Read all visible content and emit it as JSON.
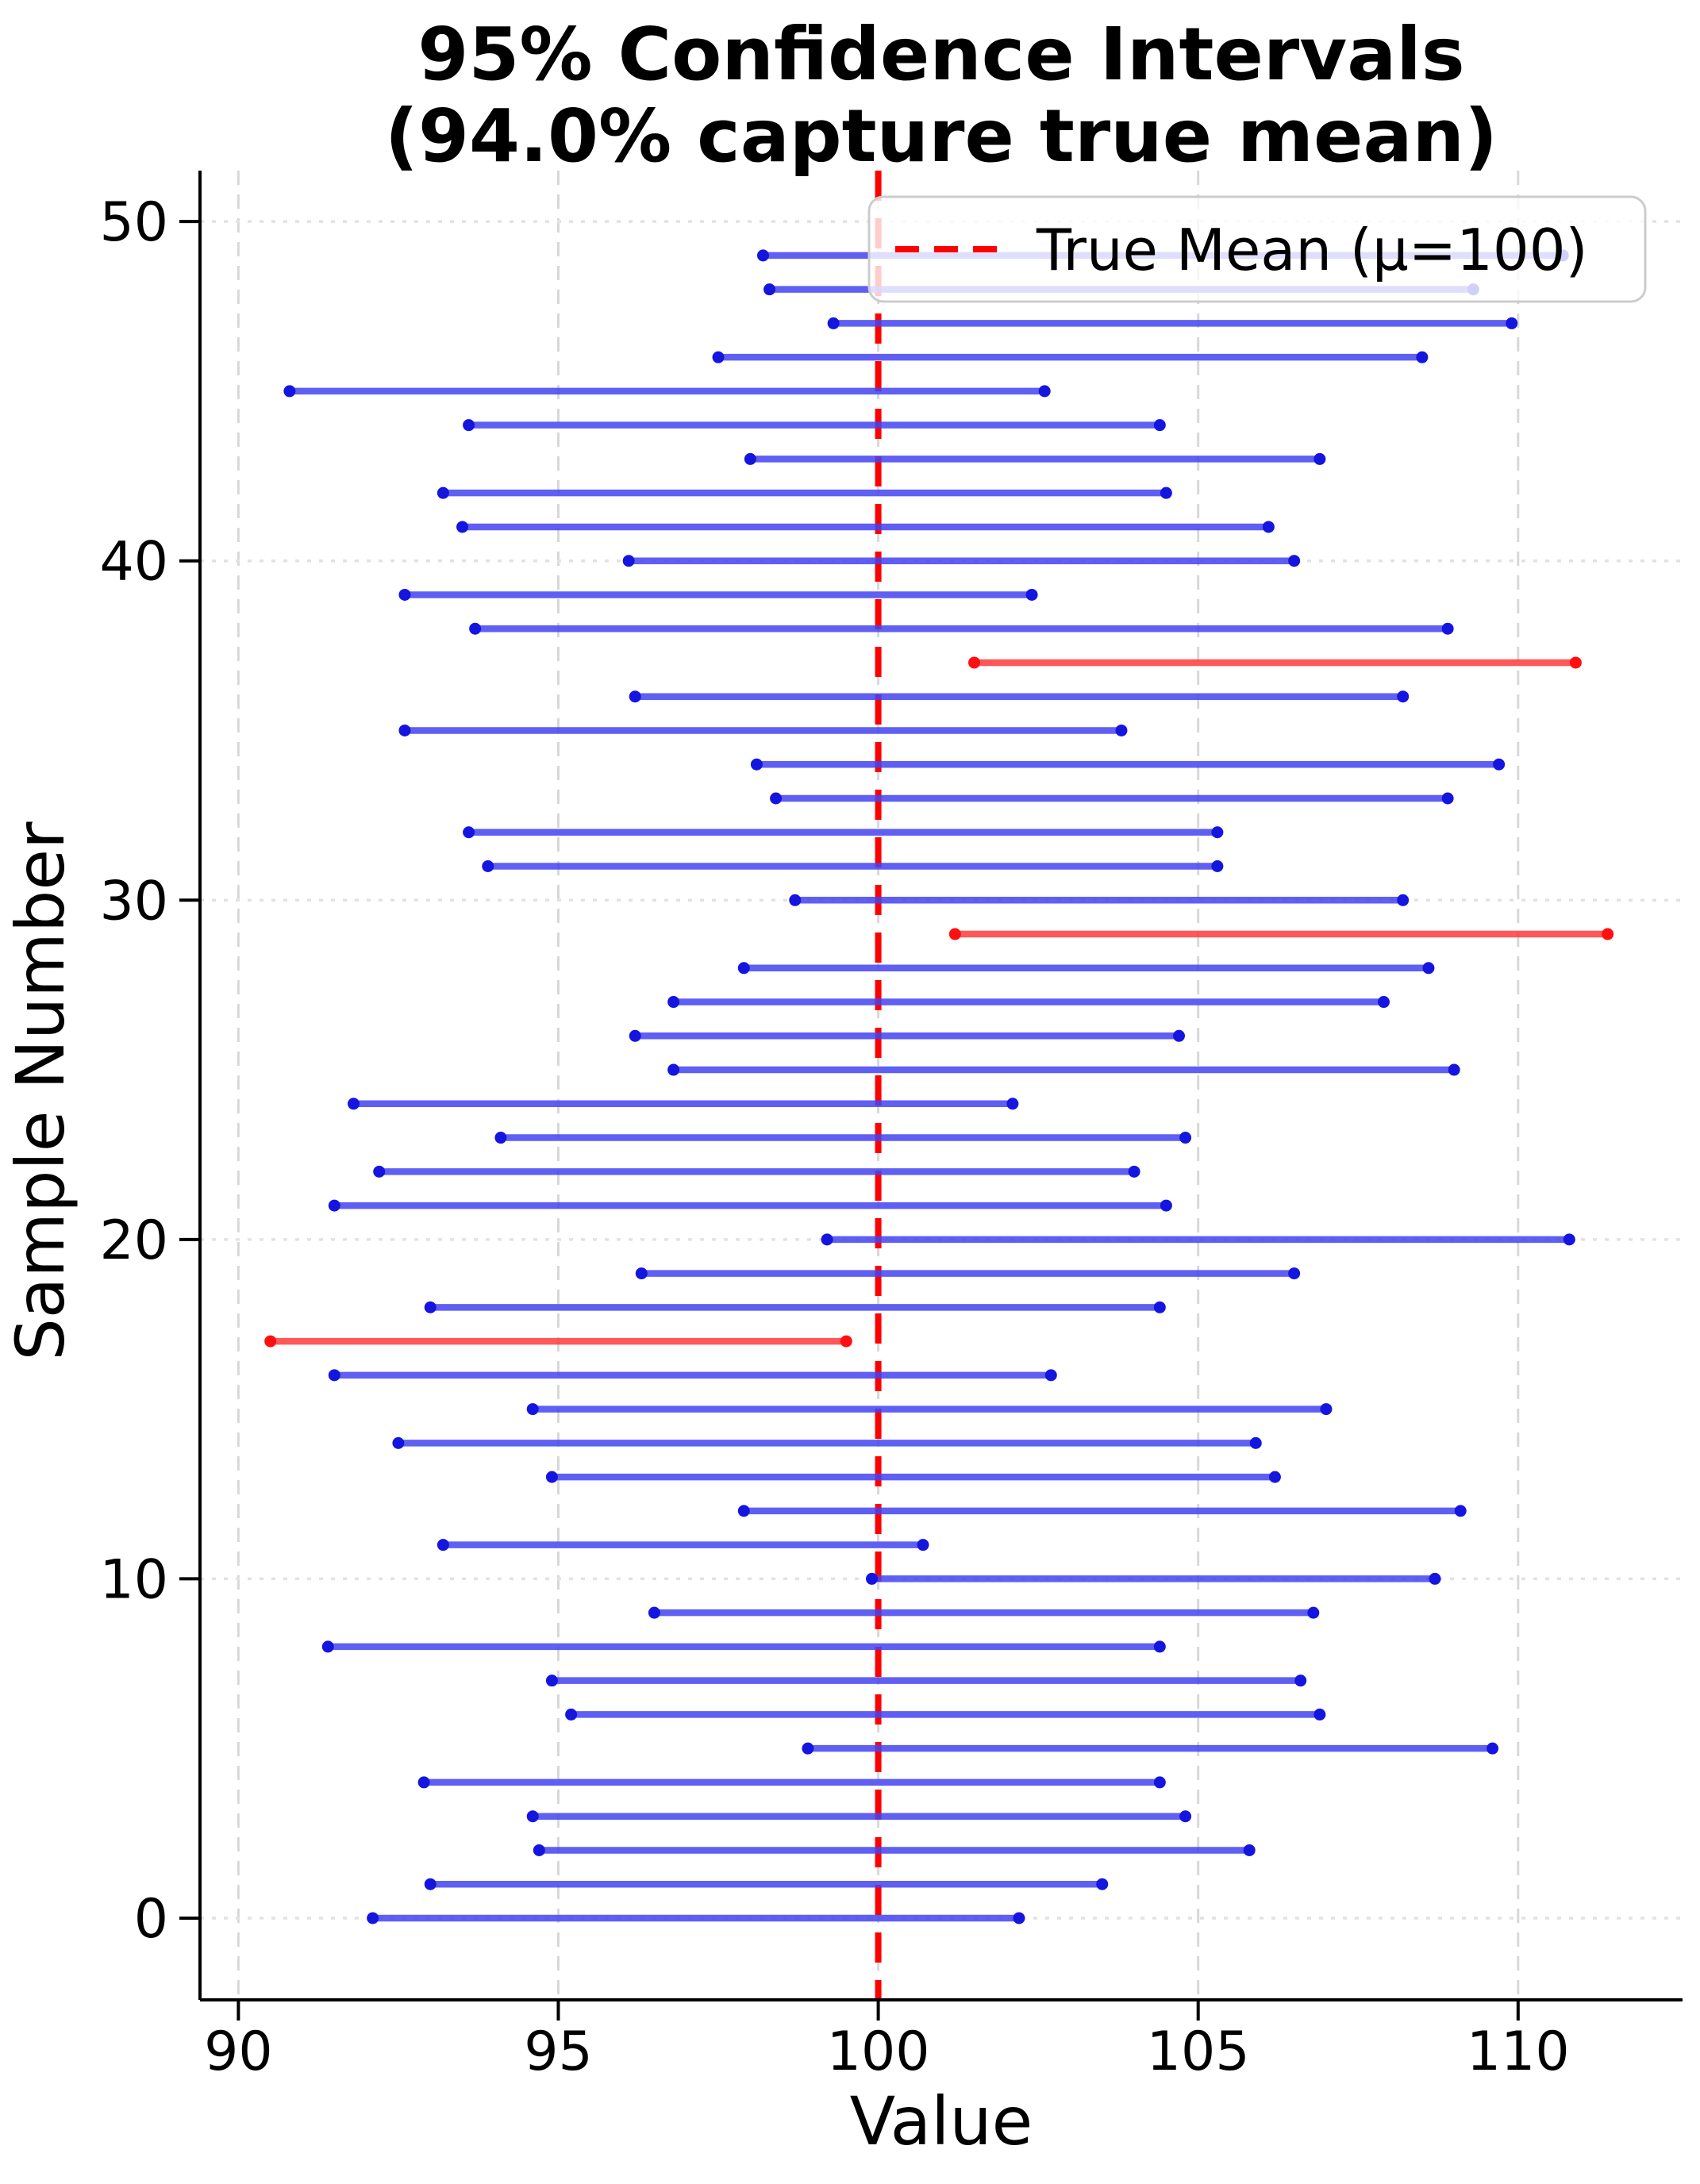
{
  "chart_data": {
    "type": "scatter",
    "subtype": "horizontal_confidence_intervals",
    "title_line1": "95% Confidence Intervals",
    "title_line2": "(94.0% capture true mean)",
    "xlabel": "Value",
    "ylabel": "Sample Number",
    "true_mean": 100,
    "capture_rate_pct": 94.0,
    "confidence_level_pct": 95,
    "n_samples": 50,
    "legend": {
      "label": "True Mean (μ=100)",
      "position": "upper right"
    },
    "xticks": [
      90,
      95,
      100,
      105,
      110
    ],
    "yticks": [
      0,
      10,
      20,
      30,
      40,
      50
    ],
    "xlim": [
      89.4,
      112.57
    ],
    "ylim": [
      -2.41,
      51.5
    ],
    "grid": true,
    "colors": {
      "capture_line": "#4444f2",
      "capture_marker": "#1515e0",
      "miss_line": "#ff3b3b",
      "miss_marker": "#ff0f0f",
      "mean_line": "#ff0000",
      "grid_x": "#d8d8d8",
      "grid_y": "#e2e2e2",
      "spine": "#000000",
      "legend_border": "#cccccc"
    },
    "intervals": [
      {
        "sample": 0,
        "low": 92.1,
        "high": 102.2,
        "captures_mean": true
      },
      {
        "sample": 1,
        "low": 93.0,
        "high": 103.5,
        "captures_mean": true
      },
      {
        "sample": 2,
        "low": 94.7,
        "high": 105.8,
        "captures_mean": true
      },
      {
        "sample": 3,
        "low": 94.6,
        "high": 104.8,
        "captures_mean": true
      },
      {
        "sample": 4,
        "low": 92.9,
        "high": 104.4,
        "captures_mean": true
      },
      {
        "sample": 5,
        "low": 98.9,
        "high": 109.6,
        "captures_mean": true
      },
      {
        "sample": 6,
        "low": 95.2,
        "high": 106.9,
        "captures_mean": true
      },
      {
        "sample": 7,
        "low": 94.9,
        "high": 106.6,
        "captures_mean": true
      },
      {
        "sample": 8,
        "low": 91.4,
        "high": 104.4,
        "captures_mean": true
      },
      {
        "sample": 9,
        "low": 96.5,
        "high": 106.8,
        "captures_mean": true
      },
      {
        "sample": 10,
        "low": 99.9,
        "high": 108.7,
        "captures_mean": true
      },
      {
        "sample": 11,
        "low": 93.2,
        "high": 100.7,
        "captures_mean": true
      },
      {
        "sample": 12,
        "low": 97.9,
        "high": 109.1,
        "captures_mean": true
      },
      {
        "sample": 13,
        "low": 94.9,
        "high": 106.2,
        "captures_mean": true
      },
      {
        "sample": 14,
        "low": 92.5,
        "high": 105.9,
        "captures_mean": true
      },
      {
        "sample": 15,
        "low": 94.6,
        "high": 107.0,
        "captures_mean": true
      },
      {
        "sample": 16,
        "low": 91.5,
        "high": 102.7,
        "captures_mean": true
      },
      {
        "sample": 17,
        "low": 90.5,
        "high": 99.5,
        "captures_mean": false
      },
      {
        "sample": 18,
        "low": 93.0,
        "high": 104.4,
        "captures_mean": true
      },
      {
        "sample": 19,
        "low": 96.3,
        "high": 106.5,
        "captures_mean": true
      },
      {
        "sample": 20,
        "low": 99.2,
        "high": 110.8,
        "captures_mean": true
      },
      {
        "sample": 21,
        "low": 91.5,
        "high": 104.5,
        "captures_mean": true
      },
      {
        "sample": 22,
        "low": 92.2,
        "high": 104.0,
        "captures_mean": true
      },
      {
        "sample": 23,
        "low": 94.1,
        "high": 104.8,
        "captures_mean": true
      },
      {
        "sample": 24,
        "low": 91.8,
        "high": 102.1,
        "captures_mean": true
      },
      {
        "sample": 25,
        "low": 96.8,
        "high": 109.0,
        "captures_mean": true
      },
      {
        "sample": 26,
        "low": 96.2,
        "high": 104.7,
        "captures_mean": true
      },
      {
        "sample": 27,
        "low": 96.8,
        "high": 107.9,
        "captures_mean": true
      },
      {
        "sample": 28,
        "low": 97.9,
        "high": 108.6,
        "captures_mean": true
      },
      {
        "sample": 29,
        "low": 101.2,
        "high": 111.4,
        "captures_mean": false
      },
      {
        "sample": 30,
        "low": 98.7,
        "high": 108.2,
        "captures_mean": true
      },
      {
        "sample": 31,
        "low": 93.9,
        "high": 105.3,
        "captures_mean": true
      },
      {
        "sample": 32,
        "low": 93.6,
        "high": 105.3,
        "captures_mean": true
      },
      {
        "sample": 33,
        "low": 98.4,
        "high": 108.9,
        "captures_mean": true
      },
      {
        "sample": 34,
        "low": 98.1,
        "high": 109.7,
        "captures_mean": true
      },
      {
        "sample": 35,
        "low": 92.6,
        "high": 103.8,
        "captures_mean": true
      },
      {
        "sample": 36,
        "low": 96.2,
        "high": 108.2,
        "captures_mean": true
      },
      {
        "sample": 37,
        "low": 101.5,
        "high": 110.9,
        "captures_mean": false
      },
      {
        "sample": 38,
        "low": 93.7,
        "high": 108.9,
        "captures_mean": true
      },
      {
        "sample": 39,
        "low": 92.6,
        "high": 102.4,
        "captures_mean": true
      },
      {
        "sample": 40,
        "low": 96.1,
        "high": 106.5,
        "captures_mean": true
      },
      {
        "sample": 41,
        "low": 93.5,
        "high": 106.1,
        "captures_mean": true
      },
      {
        "sample": 42,
        "low": 93.2,
        "high": 104.5,
        "captures_mean": true
      },
      {
        "sample": 43,
        "low": 98.0,
        "high": 106.9,
        "captures_mean": true
      },
      {
        "sample": 44,
        "low": 93.6,
        "high": 104.4,
        "captures_mean": true
      },
      {
        "sample": 45,
        "low": 90.8,
        "high": 102.6,
        "captures_mean": true
      },
      {
        "sample": 46,
        "low": 97.5,
        "high": 108.5,
        "captures_mean": true
      },
      {
        "sample": 47,
        "low": 99.3,
        "high": 109.9,
        "captures_mean": true
      },
      {
        "sample": 48,
        "low": 98.3,
        "high": 109.3,
        "captures_mean": true
      },
      {
        "sample": 49,
        "low": 98.2,
        "high": 110.7,
        "captures_mean": true
      }
    ]
  }
}
